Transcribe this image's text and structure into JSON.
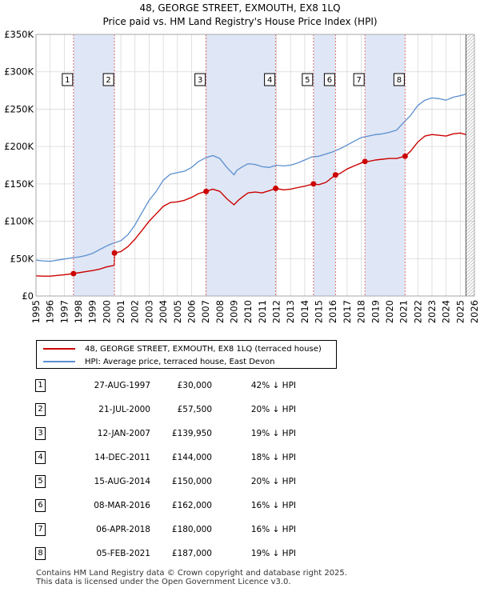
{
  "title_line1": "48, GEORGE STREET, EXMOUTH, EX8 1LQ",
  "title_line2": "Price paid vs. HM Land Registry's House Price Index (HPI)",
  "colors": {
    "property": "#cc0000",
    "hpi": "#5b8fd0",
    "shade": "#dfe6f5",
    "marker_line": "#e07070",
    "grid": "#d8d8d8"
  },
  "legend": {
    "property_label": "48, GEORGE STREET, EXMOUTH, EX8 1LQ (terraced house)",
    "hpi_label": "HPI: Average price, terraced house, East Devon"
  },
  "sales": [
    {
      "num": "1",
      "date": "27-AUG-1997",
      "price": "£30,000",
      "hpi": "42% ↓ HPI"
    },
    {
      "num": "2",
      "date": "21-JUL-2000",
      "price": "£57,500",
      "hpi": "20% ↓ HPI"
    },
    {
      "num": "3",
      "date": "12-JAN-2007",
      "price": "£139,950",
      "hpi": "19% ↓ HPI"
    },
    {
      "num": "4",
      "date": "14-DEC-2011",
      "price": "£144,000",
      "hpi": "18% ↓ HPI"
    },
    {
      "num": "5",
      "date": "15-AUG-2014",
      "price": "£150,000",
      "hpi": "20% ↓ HPI"
    },
    {
      "num": "6",
      "date": "08-MAR-2016",
      "price": "£162,000",
      "hpi": "16% ↓ HPI"
    },
    {
      "num": "7",
      "date": "06-APR-2018",
      "price": "£180,000",
      "hpi": "16% ↓ HPI"
    },
    {
      "num": "8",
      "date": "05-FEB-2021",
      "price": "£187,000",
      "hpi": "19% ↓ HPI"
    }
  ],
  "footer_line1": "Contains HM Land Registry data © Crown copyright and database right 2025.",
  "footer_line2": "This data is licensed under the Open Government Licence v3.0.",
  "chart_data": {
    "type": "line",
    "title": "48, GEORGE STREET, EXMOUTH, EX8 1LQ — Price paid vs. HM Land Registry's House Price Index (HPI)",
    "xlabel": "",
    "ylabel": "",
    "xlim": [
      1995,
      2026
    ],
    "ylim": [
      0,
      350000
    ],
    "x_ticks": [
      1995,
      1996,
      1997,
      1998,
      1999,
      2000,
      2001,
      2002,
      2003,
      2004,
      2005,
      2006,
      2007,
      2008,
      2009,
      2010,
      2011,
      2012,
      2013,
      2014,
      2015,
      2016,
      2017,
      2018,
      2019,
      2020,
      2021,
      2022,
      2023,
      2024,
      2025,
      2026
    ],
    "y_ticks": [
      0,
      50000,
      100000,
      150000,
      200000,
      250000,
      300000,
      350000
    ],
    "y_tick_labels": [
      "£0",
      "£50K",
      "£100K",
      "£150K",
      "£200K",
      "£250K",
      "£300K",
      "£350K"
    ],
    "grid": true,
    "shaded_spans": [
      [
        1997.65,
        2000.55
      ],
      [
        2007.03,
        2011.95
      ],
      [
        2014.62,
        2016.18
      ],
      [
        2018.26,
        2021.1
      ]
    ],
    "future_hatch_from": 2025.4,
    "series": [
      {
        "name": "HPI: Average price, terraced house, East Devon",
        "x": [
          1995.0,
          1995.5,
          1996.0,
          1996.5,
          1997.0,
          1997.5,
          1998.0,
          1998.5,
          1999.0,
          1999.5,
          2000.0,
          2000.5,
          2001.0,
          2001.5,
          2002.0,
          2002.5,
          2003.0,
          2003.5,
          2004.0,
          2004.5,
          2005.0,
          2005.5,
          2006.0,
          2006.5,
          2007.0,
          2007.5,
          2008.0,
          2008.5,
          2009.0,
          2009.2,
          2009.6,
          2010.0,
          2010.5,
          2011.0,
          2011.5,
          2012.0,
          2012.5,
          2013.0,
          2013.5,
          2014.0,
          2014.5,
          2015.0,
          2015.5,
          2016.0,
          2016.5,
          2017.0,
          2017.5,
          2018.0,
          2018.5,
          2019.0,
          2019.5,
          2020.0,
          2020.5,
          2021.0,
          2021.5,
          2022.0,
          2022.5,
          2023.0,
          2023.5,
          2024.0,
          2024.5,
          2025.0,
          2025.4
        ],
        "values": [
          48000,
          47000,
          46500,
          48000,
          49500,
          51000,
          52000,
          54000,
          57000,
          62000,
          67000,
          71000,
          74000,
          82000,
          95000,
          112000,
          128000,
          140000,
          155000,
          163000,
          165000,
          167000,
          172000,
          180000,
          185000,
          188000,
          184000,
          172000,
          162000,
          168000,
          173000,
          177000,
          176000,
          173000,
          172000,
          175000,
          174000,
          175000,
          178000,
          182000,
          186000,
          187000,
          190000,
          193000,
          197000,
          202000,
          207000,
          212000,
          214000,
          216000,
          217000,
          219000,
          222000,
          232000,
          242000,
          255000,
          262000,
          265000,
          264000,
          262000,
          266000,
          268000,
          270000
        ]
      },
      {
        "name": "48, GEORGE STREET, EXMOUTH, EX8 1LQ (terraced house)",
        "x": [
          1995.0,
          1995.5,
          1996.0,
          1996.5,
          1997.0,
          1997.65,
          1998.0,
          1998.5,
          1999.0,
          1999.5,
          2000.0,
          2000.53,
          2000.56,
          2001.0,
          2001.5,
          2002.0,
          2002.5,
          2003.0,
          2003.5,
          2004.0,
          2004.5,
          2005.0,
          2005.5,
          2006.0,
          2006.5,
          2007.03,
          2007.5,
          2008.0,
          2008.5,
          2009.0,
          2009.3,
          2009.7,
          2010.0,
          2010.5,
          2011.0,
          2011.5,
          2011.95,
          2012.5,
          2013.0,
          2013.5,
          2014.0,
          2014.62,
          2015.0,
          2015.5,
          2016.18,
          2016.5,
          2017.0,
          2017.5,
          2018.26,
          2018.5,
          2019.0,
          2019.5,
          2020.0,
          2020.5,
          2021.1,
          2021.5,
          2022.0,
          2022.5,
          2023.0,
          2023.5,
          2024.0,
          2024.5,
          2025.0,
          2025.4
        ],
        "values": [
          27000,
          26500,
          26500,
          27500,
          28500,
          30000,
          31000,
          32500,
          34000,
          36000,
          39000,
          41000,
          57500,
          59500,
          66000,
          76000,
          88000,
          100000,
          110000,
          120000,
          125000,
          126000,
          128000,
          132000,
          137000,
          139950,
          143000,
          140000,
          130000,
          122000,
          128000,
          134000,
          138000,
          139000,
          138000,
          141000,
          144000,
          142000,
          143000,
          145000,
          147000,
          150000,
          149000,
          152000,
          162000,
          164000,
          170000,
          174000,
          180000,
          180000,
          182000,
          183000,
          184000,
          184000,
          187000,
          194000,
          206000,
          214000,
          216000,
          215000,
          214000,
          217000,
          218000,
          216000
        ]
      }
    ],
    "sale_markers": [
      {
        "label": "1",
        "x": 1997.65,
        "value": 30000
      },
      {
        "label": "2",
        "x": 2000.55,
        "value": 57500
      },
      {
        "label": "3",
        "x": 2007.03,
        "value": 139950
      },
      {
        "label": "4",
        "x": 2011.95,
        "value": 144000
      },
      {
        "label": "5",
        "x": 2014.62,
        "value": 150000
      },
      {
        "label": "6",
        "x": 2016.18,
        "value": 162000
      },
      {
        "label": "7",
        "x": 2018.26,
        "value": 180000
      },
      {
        "label": "8",
        "x": 2021.1,
        "value": 187000
      }
    ]
  }
}
